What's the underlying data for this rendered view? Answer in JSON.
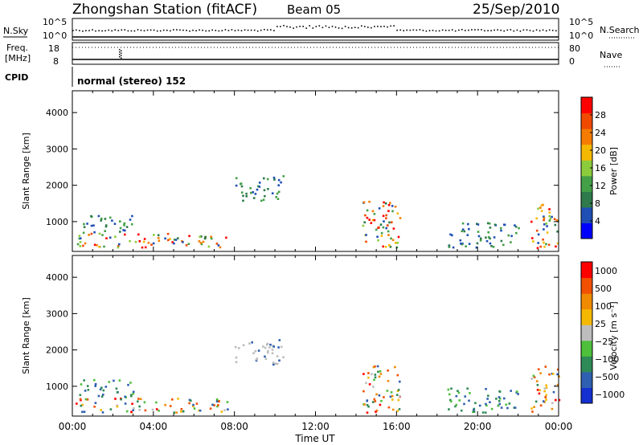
{
  "header": {
    "station": "Zhongshan Station (fitACF)",
    "beam": "Beam 05",
    "date": "25/Sep/2010"
  },
  "top_panels": {
    "nsky": {
      "left_label": "N.Sky",
      "left_ticks": [
        "10^5",
        "10^0"
      ],
      "right_label": "N.Search",
      "right_ticks": [
        "10^5",
        "10^0"
      ]
    },
    "freq": {
      "left_label_1": "Freq.",
      "left_label_2": "[MHz]",
      "left_ticks": [
        18,
        8
      ],
      "right_label": "Nave",
      "right_ticks": [
        80,
        0
      ]
    },
    "cpid": {
      "label": "CPID",
      "text": "normal (stereo) 152"
    }
  },
  "chart_data": [
    {
      "type": "heatmap",
      "name": "power",
      "ylabel": "Slant Range [km]",
      "yticks": [
        1000,
        2000,
        3000,
        4000
      ],
      "ylim": [
        180,
        4600
      ],
      "xlim": [
        0,
        24
      ],
      "colorbar": {
        "label": "Power [dB]",
        "ticks": [
          4,
          8,
          12,
          16,
          20,
          24,
          28
        ],
        "range": [
          0,
          32
        ],
        "colors": [
          "#0000ff",
          "#1f4fb4",
          "#2e7a4a",
          "#43a047",
          "#8ccc3c",
          "#f5b800",
          "#f57c00",
          "#f04a00",
          "#ff0000"
        ]
      },
      "echo_regions": [
        {
          "t0": 0.1,
          "t1": 7.9,
          "r0": 300,
          "r1": 700,
          "level": "mixed"
        },
        {
          "t0": 0.3,
          "t1": 3.0,
          "r0": 700,
          "r1": 1200,
          "level": "low"
        },
        {
          "t0": 8.0,
          "t1": 10.4,
          "r0": 1600,
          "r1": 2300,
          "level": "low"
        },
        {
          "t0": 14.3,
          "t1": 16.2,
          "r0": 300,
          "r1": 1600,
          "level": "mixed"
        },
        {
          "t0": 15.0,
          "t1": 15.6,
          "r0": 850,
          "r1": 1250,
          "level": "high"
        },
        {
          "t0": 18.5,
          "t1": 22.0,
          "r0": 300,
          "r1": 1000,
          "level": "low"
        },
        {
          "t0": 22.6,
          "t1": 24.0,
          "r0": 300,
          "r1": 1600,
          "level": "mixed"
        }
      ]
    },
    {
      "type": "heatmap",
      "name": "velocity",
      "ylabel": "Slant Range [km]",
      "yticks": [
        1000,
        2000,
        3000,
        4000
      ],
      "ylim": [
        180,
        4600
      ],
      "xlim": [
        0,
        24
      ],
      "xlabel": "Time UT",
      "xticks": [
        "00:00",
        "04:00",
        "08:00",
        "12:00",
        "16:00",
        "20:00",
        "00:00"
      ],
      "colorbar": {
        "label": "Velocity [m s⁻¹]",
        "ticks": [
          "1000",
          "500",
          "100",
          "25",
          "−25",
          "−100",
          "−500",
          "−1000"
        ],
        "colors": [
          "#1530d0",
          "#2e5fb0",
          "#2e8a56",
          "#4dbf3a",
          "#bdbdbd",
          "#f5b800",
          "#f08a00",
          "#f05000",
          "#ff0000"
        ]
      },
      "echo_regions": [
        {
          "t0": 0.1,
          "t1": 7.9,
          "r0": 300,
          "r1": 700,
          "level": "mixed"
        },
        {
          "t0": 0.3,
          "t1": 3.0,
          "r0": 700,
          "r1": 1200,
          "level": "low"
        },
        {
          "t0": 8.0,
          "t1": 10.4,
          "r0": 1600,
          "r1": 2300,
          "level": "grey"
        },
        {
          "t0": 14.3,
          "t1": 16.2,
          "r0": 300,
          "r1": 1600,
          "level": "mixed"
        },
        {
          "t0": 18.5,
          "t1": 22.0,
          "r0": 300,
          "r1": 1000,
          "level": "low"
        },
        {
          "t0": 22.6,
          "t1": 24.0,
          "r0": 300,
          "r1": 1600,
          "level": "mixed"
        }
      ]
    }
  ]
}
